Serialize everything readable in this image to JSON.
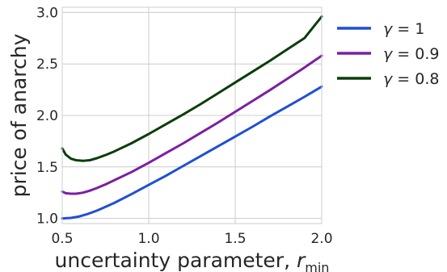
{
  "chart_data": {
    "type": "line",
    "title": "",
    "xlabel": "uncertainty parameter, ",
    "xlabel_var": "r",
    "xlabel_sub": "min",
    "ylabel": "price of anarchy",
    "xlim": [
      0.5,
      2.0
    ],
    "ylim": [
      0.95,
      3.05
    ],
    "x_ticks": [
      0.5,
      1.0,
      1.5,
      2.0
    ],
    "x_tick_labels": [
      "0.5",
      "1.0",
      "1.5",
      "2.0"
    ],
    "y_ticks": [
      1.0,
      1.5,
      2.0,
      2.5,
      3.0
    ],
    "y_tick_labels": [
      "1.0",
      "1.5",
      "2.0",
      "2.5",
      "3.0"
    ],
    "grid": true,
    "legend_position": "outside-right-top",
    "series": [
      {
        "name_symbol": "γ",
        "name_rest": " = 1",
        "color": "#1f4fd6",
        "x": [
          0.5,
          0.55,
          0.6,
          0.65,
          0.7,
          0.8,
          0.9,
          1.0,
          1.1,
          1.2,
          1.3,
          1.4,
          1.5,
          1.6,
          1.7,
          1.8,
          1.9,
          2.0
        ],
        "y": [
          1.0,
          1.005,
          1.02,
          1.045,
          1.075,
          1.15,
          1.235,
          1.325,
          1.415,
          1.51,
          1.605,
          1.7,
          1.795,
          1.89,
          1.99,
          2.085,
          2.18,
          2.28
        ]
      },
      {
        "name_symbol": "γ",
        "name_rest": " = 0.9",
        "color": "#7b1fa2",
        "x": [
          0.5,
          0.52,
          0.55,
          0.58,
          0.62,
          0.66,
          0.7,
          0.75,
          0.8,
          0.9,
          1.0,
          1.1,
          1.2,
          1.3,
          1.4,
          1.5,
          1.6,
          1.7,
          1.8,
          1.9,
          2.0
        ],
        "y": [
          1.26,
          1.245,
          1.24,
          1.24,
          1.25,
          1.27,
          1.295,
          1.33,
          1.37,
          1.45,
          1.54,
          1.635,
          1.73,
          1.83,
          1.93,
          2.035,
          2.14,
          2.245,
          2.355,
          2.465,
          2.58
        ]
      },
      {
        "name_symbol": "γ",
        "name_rest": " = 0.8",
        "color": "#0b3d0b",
        "x": [
          0.5,
          0.52,
          0.55,
          0.58,
          0.62,
          0.66,
          0.7,
          0.75,
          0.8,
          0.9,
          1.0,
          1.1,
          1.2,
          1.3,
          1.4,
          1.5,
          1.6,
          1.7,
          1.8,
          1.9,
          2.0
        ],
        "y": [
          1.68,
          1.62,
          1.58,
          1.565,
          1.56,
          1.565,
          1.585,
          1.615,
          1.65,
          1.73,
          1.82,
          1.915,
          2.01,
          2.11,
          2.215,
          2.32,
          2.425,
          2.53,
          2.64,
          2.75,
          2.96
        ]
      }
    ]
  }
}
